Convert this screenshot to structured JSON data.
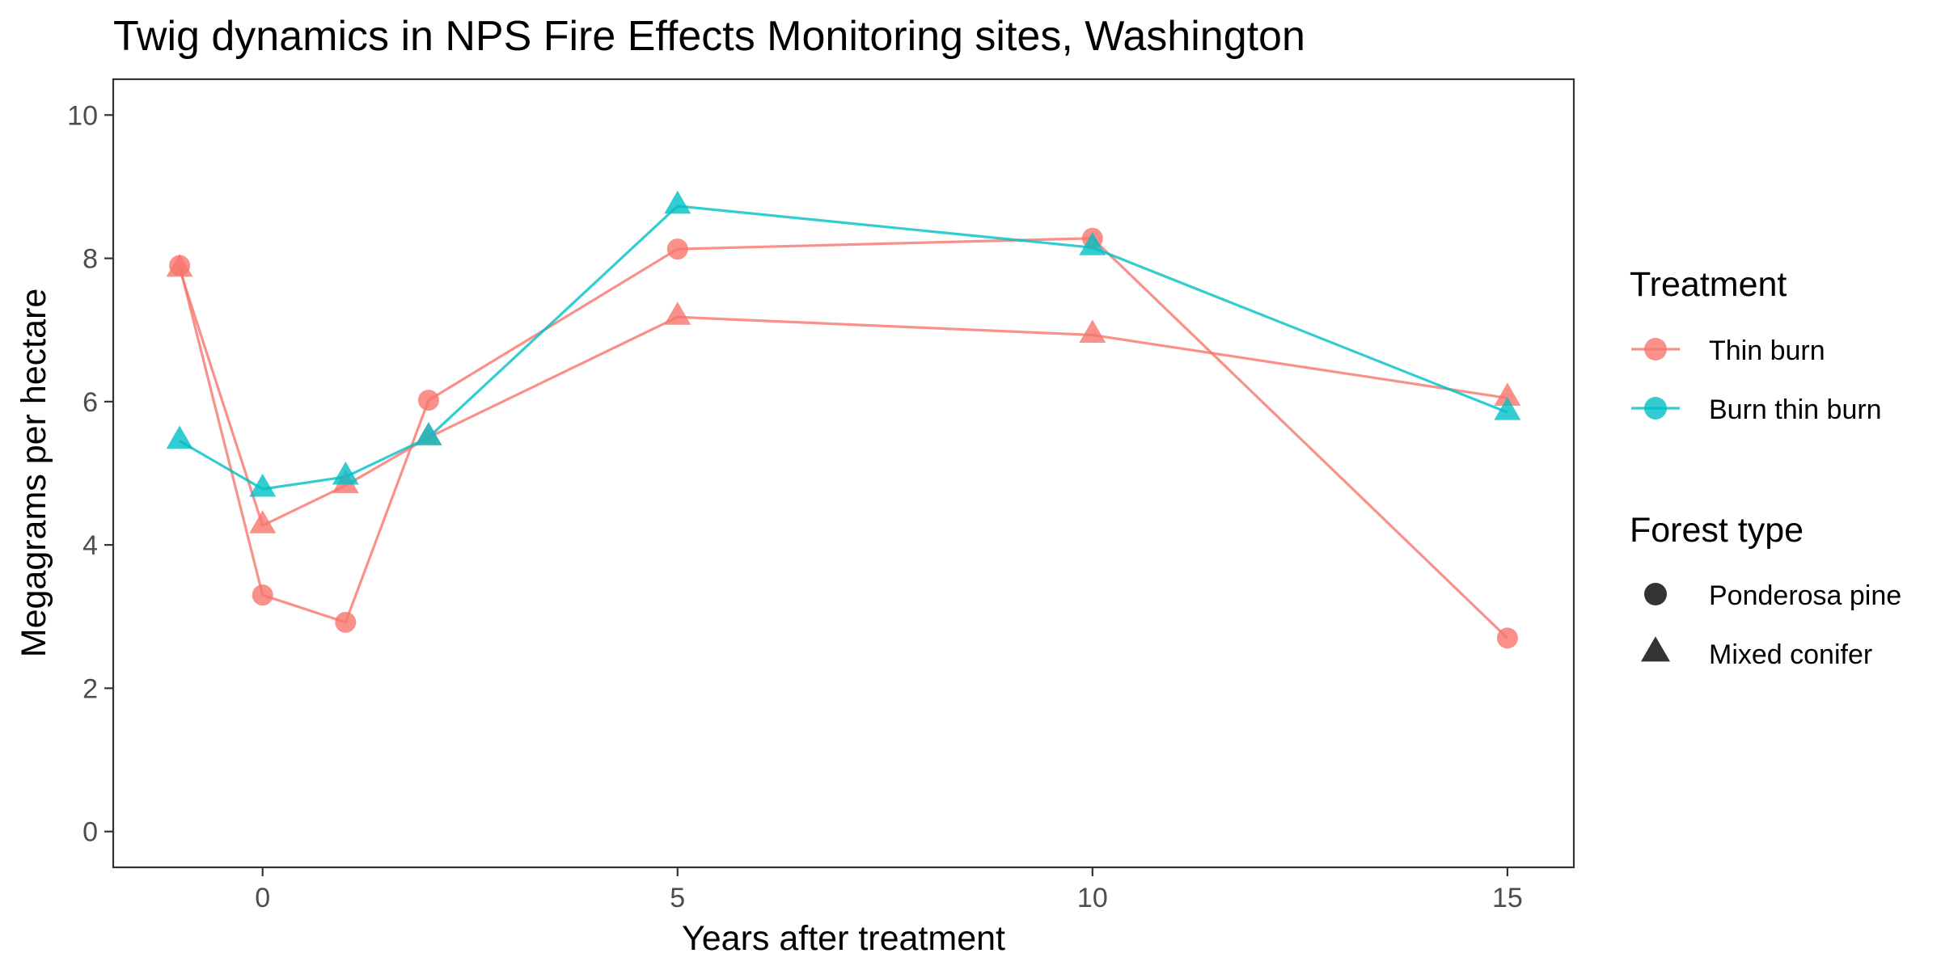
{
  "chart_data": {
    "type": "line",
    "title": "Twig dynamics in NPS Fire Effects Monitoring sites, Washington",
    "xlabel": "Years after treatment",
    "ylabel": "Megagrams per hectare",
    "xlim": [
      -1.8,
      15.8
    ],
    "ylim": [
      -0.5,
      10.5
    ],
    "x_ticks": [
      0,
      5,
      10,
      15
    ],
    "y_ticks": [
      0,
      2,
      4,
      6,
      8,
      10
    ],
    "grid": false,
    "legend_position": "right",
    "legends": {
      "treatment": {
        "title": "Treatment",
        "entries": [
          {
            "label": "Thin burn",
            "color": "#F8766D"
          },
          {
            "label": "Burn thin burn",
            "color": "#00BFC4"
          }
        ]
      },
      "forest_type": {
        "title": "Forest type",
        "entries": [
          {
            "label": "Ponderosa pine",
            "shape": "circle"
          },
          {
            "label": "Mixed conifer",
            "shape": "triangle"
          }
        ]
      }
    },
    "series": [
      {
        "treatment": "Thin burn",
        "forest_type": "Ponderosa pine",
        "color": "#F8766D",
        "shape": "circle",
        "points": [
          {
            "x": -1,
            "y": 7.9
          },
          {
            "x": 0,
            "y": 3.3
          },
          {
            "x": 1,
            "y": 2.92
          },
          {
            "x": 2,
            "y": 6.02
          },
          {
            "x": 5,
            "y": 8.13
          },
          {
            "x": 10,
            "y": 8.28
          },
          {
            "x": 15,
            "y": 2.7
          }
        ]
      },
      {
        "treatment": "Thin burn",
        "forest_type": "Mixed conifer",
        "color": "#F8766D",
        "shape": "triangle",
        "points": [
          {
            "x": -1,
            "y": 7.85
          },
          {
            "x": 0,
            "y": 4.27
          },
          {
            "x": 1,
            "y": 4.83
          },
          {
            "x": 2,
            "y": 5.5
          },
          {
            "x": 5,
            "y": 7.18
          },
          {
            "x": 10,
            "y": 6.93
          },
          {
            "x": 15,
            "y": 6.05
          }
        ]
      },
      {
        "treatment": "Burn thin burn",
        "forest_type": "Mixed conifer",
        "color": "#00BFC4",
        "shape": "triangle",
        "points": [
          {
            "x": -1,
            "y": 5.45
          },
          {
            "x": 0,
            "y": 4.78
          },
          {
            "x": 1,
            "y": 4.95
          },
          {
            "x": 2,
            "y": 5.5
          },
          {
            "x": 5,
            "y": 8.73
          },
          {
            "x": 10,
            "y": 8.15
          },
          {
            "x": 15,
            "y": 5.85
          }
        ]
      }
    ]
  }
}
